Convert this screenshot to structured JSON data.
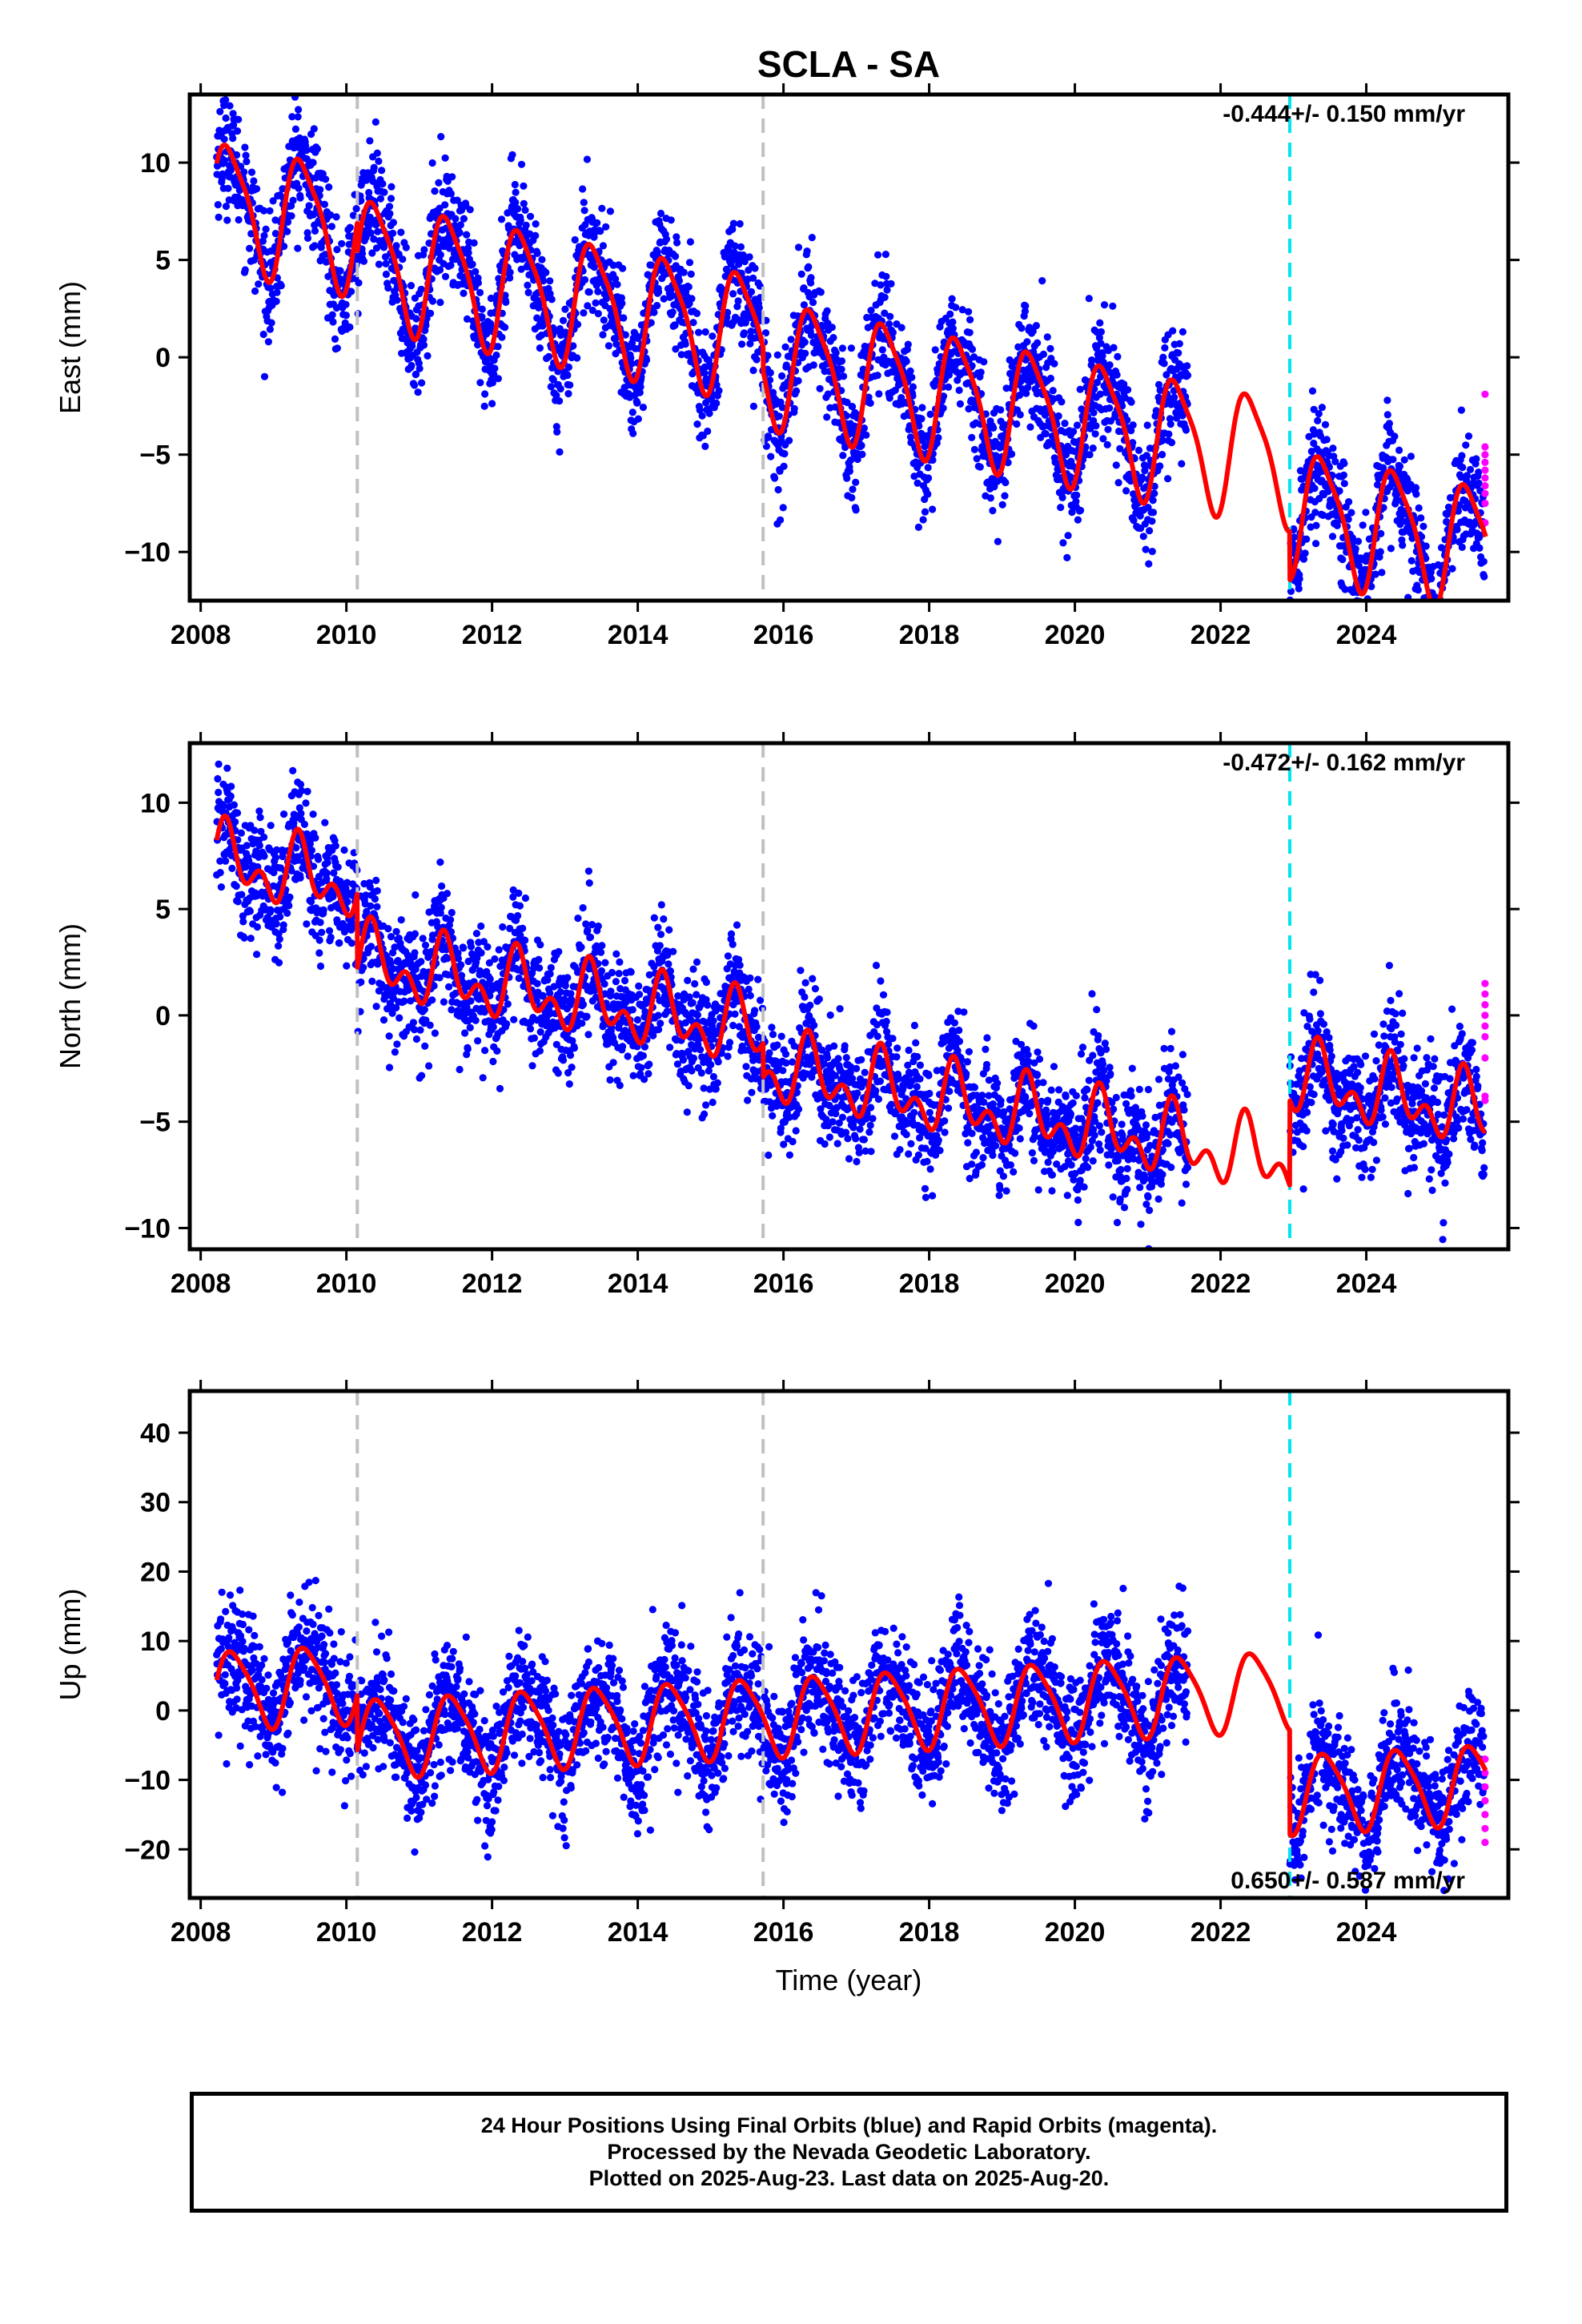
{
  "title": "SCLA - SA",
  "xlabel": "Time (year)",
  "footer": {
    "line1": "24 Hour Positions Using Final Orbits (blue) and Rapid Orbits (magenta).",
    "line2": "Processed by the Nevada Geodetic Laboratory.",
    "line3": "Plotted on 2025-Aug-23. Last data on 2025-Aug-20."
  },
  "colors": {
    "final_orbits": "#0000ff",
    "rapid_orbits": "#ff00ff",
    "model_fit": "#ff0000",
    "equipment_change": "#c0c0c0",
    "event_line": "#00e5ee"
  },
  "chart_data": [
    {
      "type": "scatter",
      "component": "East",
      "ylabel": "East (mm)",
      "rate_label": "-0.444+/- 0.150 mm/yr",
      "xlim": [
        2007.85,
        2025.95
      ],
      "ylim": [
        -12.5,
        13.5
      ],
      "xticks": [
        "2008",
        "2010",
        "2012",
        "2014",
        "2016",
        "2018",
        "2020",
        "2022",
        "2024"
      ],
      "yticks": [
        10,
        5,
        0,
        -5,
        -10
      ],
      "ytick_labels": [
        "10",
        "5",
        "0",
        "−5",
        "−10"
      ],
      "equipment_changes": [
        2010.15,
        2015.72
      ],
      "event_lines": [
        2022.95
      ],
      "data_gap": [
        2021.55,
        2022.95
      ],
      "model": {
        "offset": 8.0,
        "trend": -0.72,
        "annual_amp": 3.1,
        "annual_phase": 0.3,
        "semiannual_amp": 0.7,
        "semiannual_phase": 1.2,
        "steps": [
          [
            2010.15,
            -1.5
          ],
          [
            2015.72,
            -1.2
          ],
          [
            2022.95,
            -2.5
          ]
        ]
      },
      "scatter_sigma": 1.5,
      "rapid_values": [
        -4.6,
        -5.0,
        -5.4,
        -5.8,
        -6.2,
        -6.6,
        -7.0,
        -7.5,
        -8.5,
        -1.9
      ]
    },
    {
      "type": "scatter",
      "component": "North",
      "ylabel": "North (mm)",
      "rate_label": "-0.472+/- 0.162 mm/yr",
      "xlim": [
        2007.85,
        2025.95
      ],
      "ylim": [
        -11.0,
        12.8
      ],
      "xticks": [
        "2008",
        "2010",
        "2012",
        "2014",
        "2016",
        "2018",
        "2020",
        "2022",
        "2024"
      ],
      "yticks": [
        10,
        5,
        0,
        -5,
        -10
      ],
      "ytick_labels": [
        "10",
        "5",
        "0",
        "−5",
        "−10"
      ],
      "equipment_changes": [
        2010.15,
        2015.72
      ],
      "event_lines": [
        2022.95
      ],
      "data_gap": [
        2021.55,
        2022.95
      ],
      "model": {
        "offset": 7.3,
        "trend": -0.62,
        "annual_amp": 1.2,
        "annual_phase": 0.5,
        "semiannual_amp": 1.0,
        "semiannual_phase": 0.0,
        "steps": [
          [
            2010.15,
            -3.5
          ],
          [
            2015.72,
            -1.6
          ],
          [
            2022.95,
            4.0
          ]
        ]
      },
      "scatter_sigma": 1.4,
      "rapid_values": [
        1.5,
        1.0,
        0.5,
        0.0,
        -0.5,
        -1.0,
        -2.0,
        -3.8,
        -4.0
      ]
    },
    {
      "type": "scatter",
      "component": "Up",
      "ylabel": "Up (mm)",
      "rate_label": "0.650+/- 0.587 mm/yr",
      "xlim": [
        2007.85,
        2025.95
      ],
      "ylim": [
        -27.0,
        46.0
      ],
      "xticks": [
        "2008",
        "2010",
        "2012",
        "2014",
        "2016",
        "2018",
        "2020",
        "2022",
        "2024"
      ],
      "yticks": [
        40,
        30,
        20,
        10,
        0,
        -10,
        -20
      ],
      "ytick_labels": [
        "40",
        "30",
        "20",
        "10",
        "0",
        "−10",
        "−20"
      ],
      "equipment_changes": [
        2010.15,
        2015.72
      ],
      "event_lines": [
        2022.95
      ],
      "data_gap": [
        2021.55,
        2022.95
      ],
      "model": {
        "offset": 3.0,
        "trend": 0.55,
        "annual_amp": 5.5,
        "annual_phase": 0.0,
        "semiannual_amp": 1.0,
        "semiannual_phase": 0.5,
        "steps": [
          [
            2010.15,
            -8.0
          ],
          [
            2015.72,
            0.0
          ],
          [
            2022.95,
            -15.0
          ]
        ]
      },
      "scatter_sigma": 4.5,
      "rapid_values": [
        -7.0,
        -9.0,
        -11.0,
        -13.0,
        -15.0,
        -17.0,
        -19.0
      ]
    }
  ]
}
